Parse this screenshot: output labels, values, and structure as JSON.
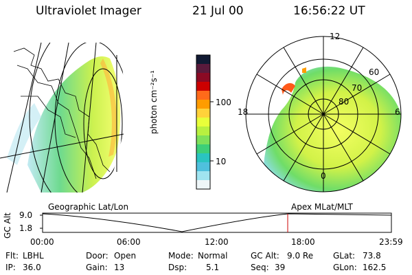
{
  "header": {
    "title": "Ultraviolet Imager",
    "date": "21 Jul 00",
    "time": "16:56:22 UT"
  },
  "colorbar": {
    "label": "photon cm⁻²s⁻¹",
    "ticks": [
      "100",
      "10"
    ],
    "colors": [
      "#111a33",
      "#5a1a3c",
      "#8b0a24",
      "#cc0000",
      "#ff6a1a",
      "#ff9c00",
      "#ffd23a",
      "#e8ff3a",
      "#b8f040",
      "#7ee05a",
      "#3dcf78",
      "#2ac4c0",
      "#4fc0dd",
      "#a0e4f0",
      "#eef6f8"
    ]
  },
  "geo_panel": {
    "caption": "Geographic Lat/Lon"
  },
  "polar_panel": {
    "caption": "Apex MLat/MLT",
    "mlt_labels": [
      "12",
      "18",
      "6",
      "0"
    ],
    "lat_labels": [
      "60",
      "70",
      "80"
    ]
  },
  "timeline": {
    "ylabel": "GC Alt",
    "yticks": [
      "9.0",
      "1.8"
    ],
    "xticks": [
      "00:00",
      "06:00",
      "12:00",
      "18:00",
      "23:59"
    ],
    "current_marker_color": "#cc0000"
  },
  "info": {
    "row1": [
      {
        "label": "Flt:",
        "value": "LBHL"
      },
      {
        "label": "Door:",
        "value": "Open"
      },
      {
        "label": "Mode:",
        "value": "Normal"
      },
      {
        "label": "GC Alt:",
        "value": "9.0 Re"
      },
      {
        "label": "GLat:",
        "value": "73.8"
      }
    ],
    "row2": [
      {
        "label": "IP:",
        "value": "36.0"
      },
      {
        "label": "Gain:",
        "value": "13"
      },
      {
        "label": "Dsp:",
        "value": "5.1"
      },
      {
        "label": "Seq:",
        "value": "39"
      },
      {
        "label": "GLon:",
        "value": "162.5"
      }
    ]
  }
}
